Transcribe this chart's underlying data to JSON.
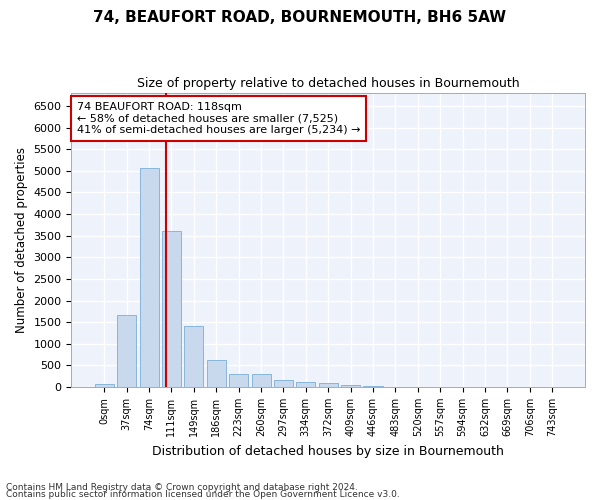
{
  "title": "74, BEAUFORT ROAD, BOURNEMOUTH, BH6 5AW",
  "subtitle": "Size of property relative to detached houses in Bournemouth",
  "xlabel": "Distribution of detached houses by size in Bournemouth",
  "ylabel": "Number of detached properties",
  "bar_color": "#c8d9ee",
  "bar_edge_color": "#7aaed6",
  "background_color": "#eef2fa",
  "grid_color": "#ffffff",
  "fig_background": "#ffffff",
  "categories": [
    "0sqm",
    "37sqm",
    "74sqm",
    "111sqm",
    "149sqm",
    "186sqm",
    "223sqm",
    "260sqm",
    "297sqm",
    "334sqm",
    "372sqm",
    "409sqm",
    "446sqm",
    "483sqm",
    "520sqm",
    "557sqm",
    "594sqm",
    "632sqm",
    "669sqm",
    "706sqm",
    "743sqm"
  ],
  "values": [
    60,
    1660,
    5075,
    3600,
    1420,
    620,
    300,
    290,
    150,
    115,
    90,
    55,
    20,
    0,
    0,
    0,
    0,
    0,
    0,
    0,
    0
  ],
  "ylim": [
    0,
    6800
  ],
  "yticks": [
    0,
    500,
    1000,
    1500,
    2000,
    2500,
    3000,
    3500,
    4000,
    4500,
    5000,
    5500,
    6000,
    6500
  ],
  "annotation_title": "74 BEAUFORT ROAD: 118sqm",
  "annotation_line1": "← 58% of detached houses are smaller (7,525)",
  "annotation_line2": "41% of semi-detached houses are larger (5,234) →",
  "annotation_box_color": "#ffffff",
  "annotation_border_color": "#cc0000",
  "vline_color": "#cc0000",
  "footer1": "Contains HM Land Registry data © Crown copyright and database right 2024.",
  "footer2": "Contains public sector information licensed under the Open Government Licence v3.0."
}
